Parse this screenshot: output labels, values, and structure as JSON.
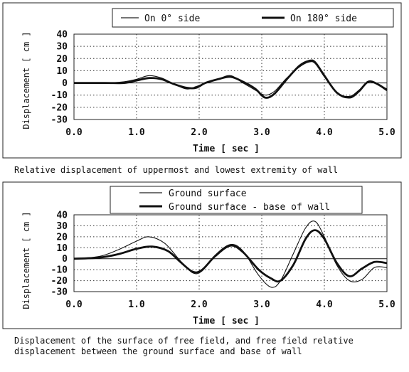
{
  "chart_data": [
    {
      "type": "line",
      "caption": "Relative displacement of uppermost and lowest extremity of wall",
      "xlabel": "Time [ sec ]",
      "ylabel": "Displacement [ cm ]",
      "xlim": [
        0,
        5
      ],
      "ylim": [
        -30,
        40
      ],
      "xticks": [
        "0.0",
        "1.0",
        "2.0",
        "3.0",
        "4.0",
        "5.0"
      ],
      "yticks": [
        "40",
        "30",
        "20",
        "10",
        "0",
        "-10",
        "-20",
        "-30"
      ],
      "grid": "dotted",
      "legend_position": "top",
      "series": [
        {
          "name": "On 0° side",
          "style": "thin",
          "x": [
            0,
            0.5,
            0.8,
            1.0,
            1.2,
            1.4,
            1.6,
            1.8,
            1.95,
            2.1,
            2.3,
            2.5,
            2.7,
            2.9,
            3.05,
            3.2,
            3.4,
            3.6,
            3.75,
            3.85,
            4.0,
            4.2,
            4.4,
            4.55,
            4.7,
            4.85,
            5.0
          ],
          "y": [
            0,
            0,
            1,
            3,
            6,
            4,
            -1,
            -5,
            -3,
            0,
            3,
            6,
            0,
            -6,
            -10,
            -7,
            4,
            13,
            17,
            16,
            5,
            -8,
            -11,
            -6,
            1,
            -1,
            -5
          ]
        },
        {
          "name": "On 180° side",
          "style": "thick",
          "x": [
            0,
            0.5,
            0.8,
            1.0,
            1.2,
            1.4,
            1.6,
            1.8,
            1.95,
            2.1,
            2.3,
            2.5,
            2.7,
            2.9,
            3.05,
            3.2,
            3.4,
            3.6,
            3.75,
            3.85,
            4.0,
            4.2,
            4.4,
            4.55,
            4.7,
            4.85,
            5.0
          ],
          "y": [
            0,
            0,
            0,
            2,
            4,
            3,
            -1,
            -4,
            -4,
            0,
            3,
            5,
            1,
            -5,
            -12,
            -9,
            3,
            14,
            18,
            17,
            6,
            -8,
            -12,
            -7,
            1,
            -1,
            -6
          ]
        }
      ]
    },
    {
      "type": "line",
      "caption": "Displacement of the surface of free field, and free field relative displacement between the ground surface and base of wall",
      "xlabel": "Time [ sec ]",
      "ylabel": "Displacement [ cm ]",
      "xlim": [
        0,
        5
      ],
      "ylim": [
        -30,
        40
      ],
      "xticks": [
        "0.0",
        "1.0",
        "2.0",
        "3.0",
        "4.0",
        "5.0"
      ],
      "yticks": [
        "40",
        "30",
        "20",
        "10",
        "0",
        "-10",
        "-20",
        "-30"
      ],
      "grid": "dotted",
      "legend_position": "top",
      "series": [
        {
          "name": "Ground surface",
          "style": "thin",
          "x": [
            0,
            0.4,
            0.7,
            1.0,
            1.2,
            1.45,
            1.7,
            1.9,
            2.05,
            2.25,
            2.5,
            2.7,
            2.95,
            3.15,
            3.3,
            3.5,
            3.7,
            3.85,
            4.0,
            4.2,
            4.4,
            4.6,
            4.8,
            5.0
          ],
          "y": [
            0,
            2,
            8,
            16,
            20,
            14,
            -2,
            -13,
            -11,
            3,
            13,
            7,
            -15,
            -26,
            -20,
            4,
            28,
            34,
            20,
            -6,
            -20,
            -19,
            -8,
            -8
          ]
        },
        {
          "name": "Ground surface - base of wall",
          "style": "thick",
          "x": [
            0,
            0.4,
            0.7,
            1.0,
            1.25,
            1.5,
            1.7,
            1.9,
            2.05,
            2.25,
            2.5,
            2.7,
            2.95,
            3.15,
            3.3,
            3.5,
            3.7,
            3.85,
            4.0,
            4.2,
            4.4,
            4.6,
            4.8,
            5.0
          ],
          "y": [
            0,
            1,
            4,
            9,
            11,
            7,
            -3,
            -12,
            -10,
            2,
            12,
            6,
            -10,
            -18,
            -20,
            -6,
            18,
            26,
            18,
            -4,
            -16,
            -9,
            -3,
            -4
          ]
        }
      ]
    }
  ]
}
